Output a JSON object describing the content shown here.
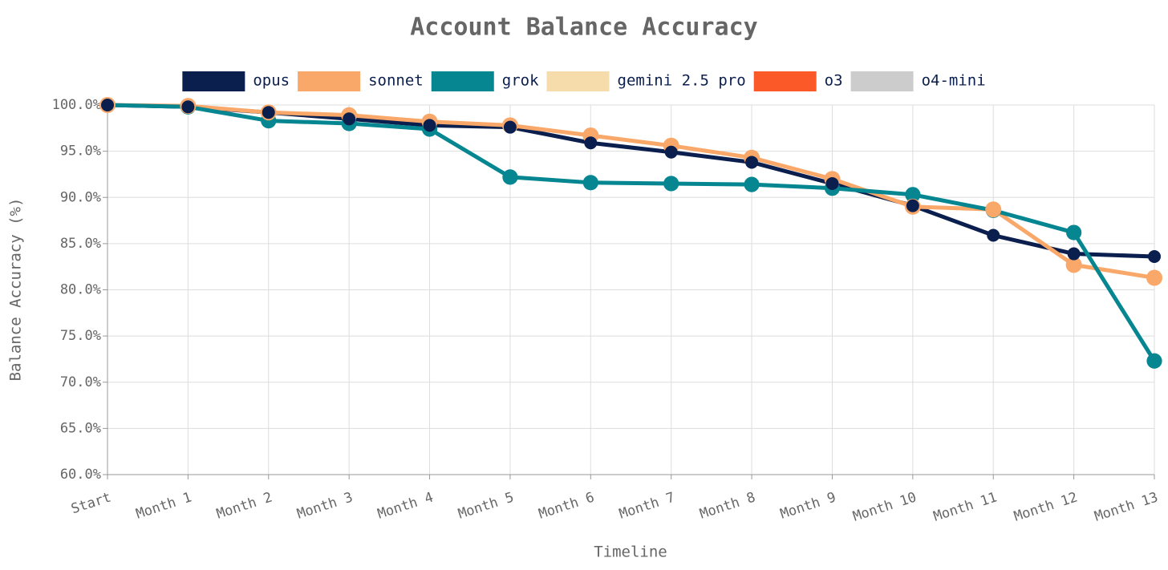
{
  "chart_data": {
    "type": "line",
    "title": "Account Balance Accuracy",
    "x_label": "Timeline",
    "y_label": "Balance Accuracy (%)",
    "categories": [
      "Start",
      "Month 1",
      "Month 2",
      "Month 3",
      "Month 4",
      "Month 5",
      "Month 6",
      "Month 7",
      "Month 8",
      "Month 9",
      "Month 10",
      "Month 11",
      "Month 12",
      "Month 13"
    ],
    "series": [
      {
        "name": "opus",
        "color": "#0b1f4e",
        "values": [
          100,
          99.8,
          99.2,
          98.5,
          97.8,
          97.6,
          95.9,
          94.9,
          93.8,
          91.5,
          89.1,
          85.9,
          83.9,
          83.6
        ]
      },
      {
        "name": "sonnet",
        "color": "#f9a86a",
        "values": [
          100,
          99.9,
          99.2,
          98.9,
          98.2,
          97.8,
          96.7,
          95.6,
          94.3,
          92.0,
          89.0,
          88.7,
          82.7,
          81.3
        ]
      },
      {
        "name": "grok",
        "color": "#058690",
        "values": [
          100,
          99.8,
          98.3,
          98.0,
          97.4,
          92.2,
          91.6,
          91.5,
          91.4,
          91.0,
          90.3,
          88.6,
          86.2,
          72.3
        ]
      },
      {
        "name": "gemini 2.5 pro",
        "color": "#f5dcaa",
        "values": [
          100,
          null,
          null,
          null,
          null,
          null,
          null,
          null,
          null,
          null,
          null,
          null,
          null,
          null
        ]
      },
      {
        "name": "o3",
        "color": "#fb5a28",
        "values": [
          100,
          null,
          null,
          null,
          null,
          null,
          null,
          null,
          null,
          null,
          null,
          null,
          null,
          null
        ]
      },
      {
        "name": "o4-mini",
        "color": "#cccccc",
        "values": [
          100,
          null,
          null,
          null,
          null,
          null,
          null,
          null,
          null,
          null,
          null,
          null,
          null,
          null
        ]
      }
    ],
    "ylim": [
      60,
      100
    ],
    "yticks": [
      {
        "value": 60,
        "label": "60.0%"
      },
      {
        "value": 65,
        "label": "65.0%"
      },
      {
        "value": 70,
        "label": "70.0%"
      },
      {
        "value": 75,
        "label": "75.0%"
      },
      {
        "value": 80,
        "label": "80.0%"
      },
      {
        "value": 85,
        "label": "85.0%"
      },
      {
        "value": 90,
        "label": "90.0%"
      },
      {
        "value": 95,
        "label": "95.0%"
      },
      {
        "value": 100,
        "label": "100.0%"
      }
    ],
    "grid": true
  }
}
